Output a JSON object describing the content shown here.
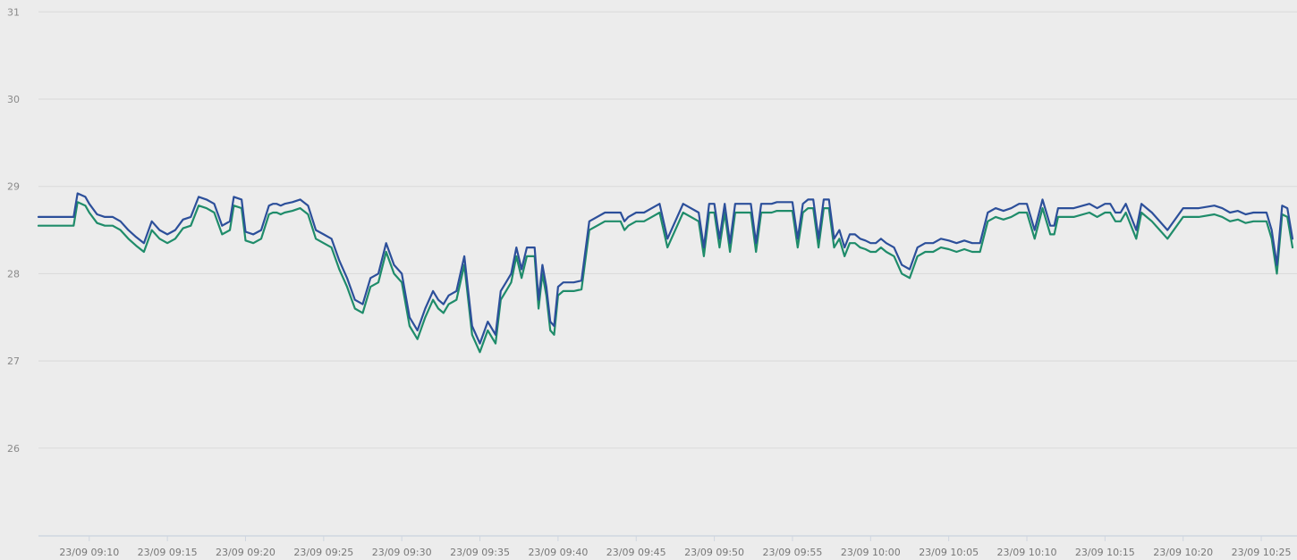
{
  "chart_data": {
    "type": "line",
    "title": "",
    "xlabel": "",
    "ylabel": "",
    "ylim": [
      25,
      31
    ],
    "xlim": [
      "23/09 09:06:45",
      "23/09 10:27:00"
    ],
    "yticks": [
      26,
      27,
      28,
      29,
      30,
      31
    ],
    "xtick_labels": [
      "23/09 09:10",
      "23/09 09:15",
      "23/09 09:20",
      "23/09 09:25",
      "23/09 09:30",
      "23/09 09:35",
      "23/09 09:40",
      "23/09 09:45",
      "23/09 09:50",
      "23/09 09:55",
      "23/09 10:00",
      "23/09 10:05",
      "23/09 10:10",
      "23/09 10:15",
      "23/09 10:20",
      "23/09 10:25"
    ],
    "grid": true,
    "colors": {
      "blue": "#2c4f9a",
      "green": "#1f8c6a",
      "background": "#ececec"
    },
    "x": [
      "09:06:45",
      "09:09:00",
      "09:09:15",
      "09:09:45",
      "09:10:00",
      "09:10:30",
      "09:11:00",
      "09:11:30",
      "09:12:00",
      "09:12:30",
      "09:13:00",
      "09:13:30",
      "09:14:00",
      "09:14:30",
      "09:15:00",
      "09:15:30",
      "09:16:00",
      "09:16:30",
      "09:17:00",
      "09:17:30",
      "09:18:00",
      "09:18:30",
      "09:19:00",
      "09:19:15",
      "09:19:45",
      "09:20:00",
      "09:20:30",
      "09:21:00",
      "09:21:30",
      "09:21:45",
      "09:22:00",
      "09:22:15",
      "09:22:30",
      "09:23:00",
      "09:23:30",
      "09:24:00",
      "09:24:30",
      "09:25:00",
      "09:25:30",
      "09:26:00",
      "09:26:30",
      "09:27:00",
      "09:27:30",
      "09:28:00",
      "09:28:30",
      "09:29:00",
      "09:29:30",
      "09:30:00",
      "09:30:30",
      "09:31:00",
      "09:31:30",
      "09:32:00",
      "09:32:20",
      "09:32:40",
      "09:33:00",
      "09:33:30",
      "09:34:00",
      "09:34:30",
      "09:35:00",
      "09:35:30",
      "09:36:00",
      "09:36:20",
      "09:36:40",
      "09:37:00",
      "09:37:20",
      "09:37:40",
      "09:38:00",
      "09:38:30",
      "09:38:45",
      "09:39:00",
      "09:39:15",
      "09:39:30",
      "09:39:45",
      "09:40:00",
      "09:40:20",
      "09:40:40",
      "09:41:00",
      "09:41:30",
      "09:42:00",
      "09:43:00",
      "09:44:00",
      "09:44:15",
      "09:44:30",
      "09:45:00",
      "09:45:30",
      "09:46:00",
      "09:46:30",
      "09:47:00",
      "09:48:00",
      "09:49:00",
      "09:49:20",
      "09:49:40",
      "09:50:00",
      "09:50:20",
      "09:50:40",
      "09:51:00",
      "09:51:20",
      "09:51:40",
      "09:52:00",
      "09:52:20",
      "09:52:40",
      "09:53:00",
      "09:53:20",
      "09:53:40",
      "09:54:00",
      "09:55:00",
      "09:55:20",
      "09:55:40",
      "09:56:00",
      "09:56:20",
      "09:56:40",
      "09:57:00",
      "09:57:20",
      "09:57:40",
      "09:58:00",
      "09:58:20",
      "09:58:40",
      "09:59:00",
      "09:59:20",
      "09:59:40",
      "10:00:00",
      "10:00:20",
      "10:00:40",
      "10:01:00",
      "10:01:30",
      "10:02:00",
      "10:02:30",
      "10:03:00",
      "10:03:30",
      "10:04:00",
      "10:04:30",
      "10:05:00",
      "10:05:30",
      "10:06:00",
      "10:06:30",
      "10:07:00",
      "10:07:30",
      "10:08:00",
      "10:08:30",
      "10:09:00",
      "10:09:30",
      "10:10:00",
      "10:10:30",
      "10:11:00",
      "10:11:30",
      "10:11:45",
      "10:12:00",
      "10:13:00",
      "10:14:00",
      "10:14:30",
      "10:15:00",
      "10:15:20",
      "10:15:40",
      "10:16:00",
      "10:16:20",
      "10:17:00",
      "10:17:20",
      "10:17:40",
      "10:18:00",
      "10:19:00",
      "10:20:00",
      "10:21:00",
      "10:22:00",
      "10:22:30",
      "10:23:00",
      "10:23:30",
      "10:24:00",
      "10:24:30",
      "10:25:00",
      "10:25:20",
      "10:25:40",
      "10:26:00",
      "10:26:20",
      "10:26:40",
      "10:27:00"
    ],
    "series": [
      {
        "color": "#2c4f9a",
        "values": [
          28.65,
          28.65,
          28.92,
          28.88,
          28.8,
          28.68,
          28.65,
          28.65,
          28.6,
          28.5,
          28.42,
          28.35,
          28.6,
          28.5,
          28.45,
          28.5,
          28.62,
          28.65,
          28.88,
          28.85,
          28.8,
          28.55,
          28.6,
          28.88,
          28.85,
          28.48,
          28.45,
          28.5,
          28.78,
          28.8,
          28.8,
          28.78,
          28.8,
          28.82,
          28.85,
          28.78,
          28.5,
          28.45,
          28.4,
          28.15,
          27.95,
          27.7,
          27.65,
          27.95,
          28.0,
          28.35,
          28.1,
          28.0,
          27.5,
          27.35,
          27.6,
          27.8,
          27.7,
          27.65,
          27.75,
          27.8,
          28.2,
          27.4,
          27.2,
          27.45,
          27.3,
          27.8,
          27.9,
          28.0,
          28.3,
          28.05,
          28.3,
          28.3,
          27.7,
          28.1,
          27.85,
          27.45,
          27.4,
          27.85,
          27.9,
          27.9,
          27.9,
          27.92,
          28.6,
          28.7,
          28.7,
          28.6,
          28.65,
          28.7,
          28.7,
          28.75,
          28.8,
          28.4,
          28.8,
          28.7,
          28.3,
          28.8,
          28.8,
          28.4,
          28.8,
          28.35,
          28.8,
          28.8,
          28.8,
          28.8,
          28.35,
          28.8,
          28.8,
          28.8,
          28.82,
          28.82,
          28.4,
          28.8,
          28.85,
          28.85,
          28.4,
          28.85,
          28.85,
          28.4,
          28.5,
          28.3,
          28.45,
          28.45,
          28.4,
          28.38,
          28.35,
          28.35,
          28.4,
          28.35,
          28.3,
          28.1,
          28.05,
          28.3,
          28.35,
          28.35,
          28.4,
          28.38,
          28.35,
          28.38,
          28.35,
          28.35,
          28.7,
          28.75,
          28.72,
          28.75,
          28.8,
          28.8,
          28.5,
          28.85,
          28.55,
          28.55,
          28.75,
          28.75,
          28.8,
          28.75,
          28.8,
          28.8,
          28.7,
          28.7,
          28.8,
          28.5,
          28.8,
          28.75,
          28.7,
          28.5,
          28.75,
          28.75,
          28.78,
          28.75,
          28.7,
          28.72,
          28.68,
          28.7,
          28.7,
          28.7,
          28.5,
          28.1,
          28.78,
          28.75,
          28.4
        ]
      },
      {
        "color": "#1f8c6a",
        "values": [
          28.55,
          28.55,
          28.82,
          28.78,
          28.7,
          28.58,
          28.55,
          28.55,
          28.5,
          28.4,
          28.32,
          28.25,
          28.5,
          28.4,
          28.35,
          28.4,
          28.52,
          28.55,
          28.78,
          28.75,
          28.7,
          28.45,
          28.5,
          28.78,
          28.75,
          28.38,
          28.35,
          28.4,
          28.68,
          28.7,
          28.7,
          28.68,
          28.7,
          28.72,
          28.75,
          28.68,
          28.4,
          28.35,
          28.3,
          28.05,
          27.85,
          27.6,
          27.55,
          27.85,
          27.9,
          28.25,
          28.0,
          27.9,
          27.4,
          27.25,
          27.5,
          27.7,
          27.6,
          27.55,
          27.65,
          27.7,
          28.1,
          27.3,
          27.1,
          27.35,
          27.2,
          27.7,
          27.8,
          27.9,
          28.2,
          27.95,
          28.2,
          28.2,
          27.6,
          28.0,
          27.75,
          27.35,
          27.3,
          27.75,
          27.8,
          27.8,
          27.8,
          27.82,
          28.5,
          28.6,
          28.6,
          28.5,
          28.55,
          28.6,
          28.6,
          28.65,
          28.7,
          28.3,
          28.7,
          28.6,
          28.2,
          28.7,
          28.7,
          28.3,
          28.7,
          28.25,
          28.7,
          28.7,
          28.7,
          28.7,
          28.25,
          28.7,
          28.7,
          28.7,
          28.72,
          28.72,
          28.3,
          28.7,
          28.75,
          28.75,
          28.3,
          28.75,
          28.75,
          28.3,
          28.4,
          28.2,
          28.35,
          28.35,
          28.3,
          28.28,
          28.25,
          28.25,
          28.3,
          28.25,
          28.2,
          28.0,
          27.95,
          28.2,
          28.25,
          28.25,
          28.3,
          28.28,
          28.25,
          28.28,
          28.25,
          28.25,
          28.6,
          28.65,
          28.62,
          28.65,
          28.7,
          28.7,
          28.4,
          28.75,
          28.45,
          28.45,
          28.65,
          28.65,
          28.7,
          28.65,
          28.7,
          28.7,
          28.6,
          28.6,
          28.7,
          28.4,
          28.7,
          28.65,
          28.6,
          28.4,
          28.65,
          28.65,
          28.68,
          28.65,
          28.6,
          28.62,
          28.58,
          28.6,
          28.6,
          28.6,
          28.4,
          28.0,
          28.68,
          28.65,
          28.3
        ]
      }
    ]
  }
}
